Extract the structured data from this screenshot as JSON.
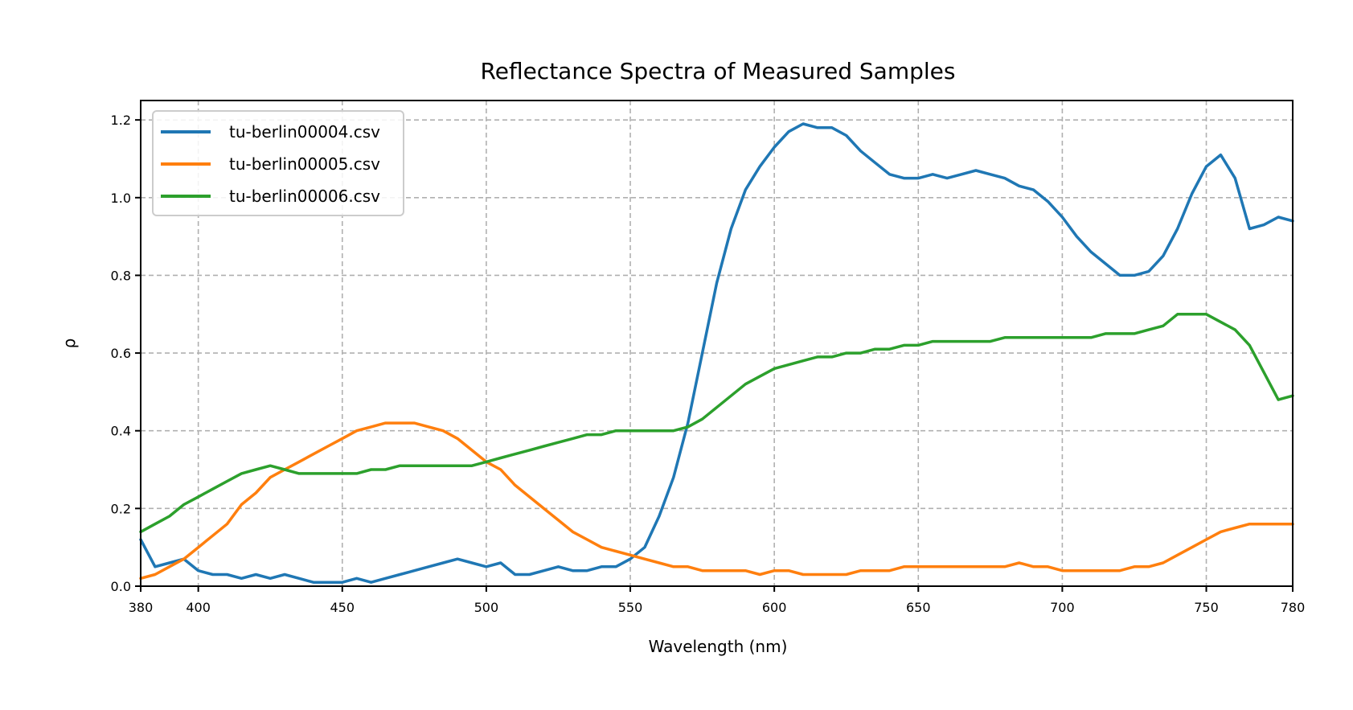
{
  "chart_data": {
    "type": "line",
    "title": "Reflectance Spectra of Measured Samples",
    "xlabel": "Wavelength (nm)",
    "ylabel": "ρ",
    "xlim": [
      380,
      780
    ],
    "ylim": [
      0,
      1.25
    ],
    "xticks": [
      380,
      400,
      450,
      500,
      550,
      600,
      650,
      700,
      750,
      780
    ],
    "yticks": [
      0.0,
      0.2,
      0.4,
      0.6,
      0.8,
      1.0,
      1.2
    ],
    "xtick_labels": [
      "380",
      "400",
      "450",
      "500",
      "550",
      "600",
      "650",
      "700",
      "750",
      "780"
    ],
    "ytick_labels": [
      "0.0",
      "0.2",
      "0.4",
      "0.6",
      "0.8",
      "1.0",
      "1.2"
    ],
    "grid": true,
    "legend_position": "top-left",
    "x": [
      380,
      385,
      390,
      395,
      400,
      405,
      410,
      415,
      420,
      425,
      430,
      435,
      440,
      445,
      450,
      455,
      460,
      465,
      470,
      475,
      480,
      485,
      490,
      495,
      500,
      505,
      510,
      515,
      520,
      525,
      530,
      535,
      540,
      545,
      550,
      555,
      560,
      565,
      570,
      575,
      580,
      585,
      590,
      595,
      600,
      605,
      610,
      615,
      620,
      625,
      630,
      635,
      640,
      645,
      650,
      655,
      660,
      665,
      670,
      675,
      680,
      685,
      690,
      695,
      700,
      705,
      710,
      715,
      720,
      725,
      730,
      735,
      740,
      745,
      750,
      755,
      760,
      765,
      770,
      775,
      780
    ],
    "series": [
      {
        "name": "tu-berlin00004.csv",
        "color": "#1f77b4",
        "values": [
          0.12,
          0.05,
          0.06,
          0.07,
          0.04,
          0.03,
          0.03,
          0.02,
          0.03,
          0.02,
          0.03,
          0.02,
          0.01,
          0.01,
          0.01,
          0.02,
          0.01,
          0.02,
          0.03,
          0.04,
          0.05,
          0.06,
          0.07,
          0.06,
          0.05,
          0.06,
          0.03,
          0.03,
          0.04,
          0.05,
          0.04,
          0.04,
          0.05,
          0.05,
          0.07,
          0.1,
          0.18,
          0.28,
          0.42,
          0.6,
          0.78,
          0.92,
          1.02,
          1.08,
          1.13,
          1.17,
          1.19,
          1.18,
          1.18,
          1.16,
          1.12,
          1.09,
          1.06,
          1.05,
          1.05,
          1.06,
          1.05,
          1.06,
          1.07,
          1.06,
          1.05,
          1.03,
          1.02,
          0.99,
          0.95,
          0.9,
          0.86,
          0.83,
          0.8,
          0.8,
          0.81,
          0.85,
          0.92,
          1.01,
          1.08,
          1.11,
          1.05,
          0.92,
          0.93,
          0.95,
          0.94
        ]
      },
      {
        "name": "tu-berlin00005.csv",
        "color": "#ff7f0e",
        "values": [
          0.02,
          0.03,
          0.05,
          0.07,
          0.1,
          0.13,
          0.16,
          0.21,
          0.24,
          0.28,
          0.3,
          0.32,
          0.34,
          0.36,
          0.38,
          0.4,
          0.41,
          0.42,
          0.42,
          0.42,
          0.41,
          0.4,
          0.38,
          0.35,
          0.32,
          0.3,
          0.26,
          0.23,
          0.2,
          0.17,
          0.14,
          0.12,
          0.1,
          0.09,
          0.08,
          0.07,
          0.06,
          0.05,
          0.05,
          0.04,
          0.04,
          0.04,
          0.04,
          0.03,
          0.04,
          0.04,
          0.03,
          0.03,
          0.03,
          0.03,
          0.04,
          0.04,
          0.04,
          0.05,
          0.05,
          0.05,
          0.05,
          0.05,
          0.05,
          0.05,
          0.05,
          0.06,
          0.05,
          0.05,
          0.04,
          0.04,
          0.04,
          0.04,
          0.04,
          0.05,
          0.05,
          0.06,
          0.08,
          0.1,
          0.12,
          0.14,
          0.15,
          0.16,
          0.16,
          0.16,
          0.16
        ]
      },
      {
        "name": "tu-berlin00006.csv",
        "color": "#2ca02c",
        "values": [
          0.14,
          0.16,
          0.18,
          0.21,
          0.23,
          0.25,
          0.27,
          0.29,
          0.3,
          0.31,
          0.3,
          0.29,
          0.29,
          0.29,
          0.29,
          0.29,
          0.3,
          0.3,
          0.31,
          0.31,
          0.31,
          0.31,
          0.31,
          0.31,
          0.32,
          0.33,
          0.34,
          0.35,
          0.36,
          0.37,
          0.38,
          0.39,
          0.39,
          0.4,
          0.4,
          0.4,
          0.4,
          0.4,
          0.41,
          0.43,
          0.46,
          0.49,
          0.52,
          0.54,
          0.56,
          0.57,
          0.58,
          0.59,
          0.59,
          0.6,
          0.6,
          0.61,
          0.61,
          0.62,
          0.62,
          0.63,
          0.63,
          0.63,
          0.63,
          0.63,
          0.64,
          0.64,
          0.64,
          0.64,
          0.64,
          0.64,
          0.64,
          0.65,
          0.65,
          0.65,
          0.66,
          0.67,
          0.7,
          0.7,
          0.7,
          0.68,
          0.66,
          0.62,
          0.55,
          0.48,
          0.49
        ]
      }
    ]
  }
}
